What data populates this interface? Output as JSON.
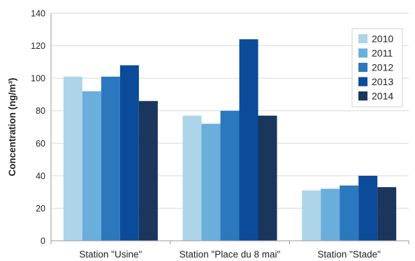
{
  "chart_data": {
    "type": "bar",
    "categories": [
      "Station \"Usine\"",
      "Station \"Place du 8 mai\"",
      "Station \"Stade\""
    ],
    "series": [
      {
        "name": "2010",
        "color": "#aed4ea",
        "values": [
          101,
          77,
          31
        ]
      },
      {
        "name": "2011",
        "color": "#6aaedb",
        "values": [
          92,
          72,
          32
        ]
      },
      {
        "name": "2012",
        "color": "#2c78be",
        "values": [
          101,
          80,
          34
        ]
      },
      {
        "name": "2013",
        "color": "#0c4a9a",
        "values": [
          108,
          124,
          40
        ]
      },
      {
        "name": "2014",
        "color": "#1a365d",
        "values": [
          86,
          77,
          33
        ]
      }
    ],
    "ylabel": "Concentration (ng/m³)",
    "ylim": [
      0,
      140
    ],
    "yticks": [
      "0",
      "20",
      "40",
      "60",
      "80",
      "100",
      "120",
      "140"
    ],
    "grid": true,
    "legend_position": "top-right"
  }
}
